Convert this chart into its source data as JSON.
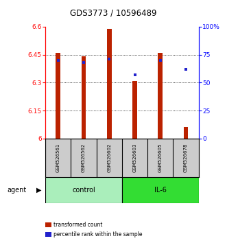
{
  "title": "GDS3773 / 10596489",
  "samples": [
    "GSM526561",
    "GSM526562",
    "GSM526602",
    "GSM526603",
    "GSM526605",
    "GSM526678"
  ],
  "groups": [
    "control",
    "control",
    "control",
    "IL-6",
    "IL-6",
    "IL-6"
  ],
  "bar_values": [
    6.46,
    6.44,
    6.59,
    6.31,
    6.46,
    6.06
  ],
  "bar_bottom": 6.0,
  "percentile_values": [
    70,
    68,
    71,
    57,
    70,
    62
  ],
  "ylim_left": [
    6.0,
    6.6
  ],
  "ylim_right": [
    0,
    100
  ],
  "yticks_left": [
    6.0,
    6.15,
    6.3,
    6.45,
    6.6
  ],
  "yticks_right": [
    0,
    25,
    50,
    75,
    100
  ],
  "ytick_labels_left": [
    "6",
    "6.15",
    "6.3",
    "6.45",
    "6.6"
  ],
  "ytick_labels_right": [
    "0",
    "25",
    "50",
    "75",
    "100%"
  ],
  "bar_color": "#bb2200",
  "dot_color": "#2222cc",
  "control_color": "#aaeebb",
  "il6_color": "#33dd33",
  "grid_color": "#000000",
  "background_color": "#ffffff",
  "plot_bg": "#ffffff",
  "sample_bg": "#cccccc",
  "legend_bar_label": "transformed count",
  "legend_dot_label": "percentile rank within the sample",
  "agent_label": "agent",
  "control_label": "control",
  "il6_label": "IL-6",
  "bar_width": 0.18
}
